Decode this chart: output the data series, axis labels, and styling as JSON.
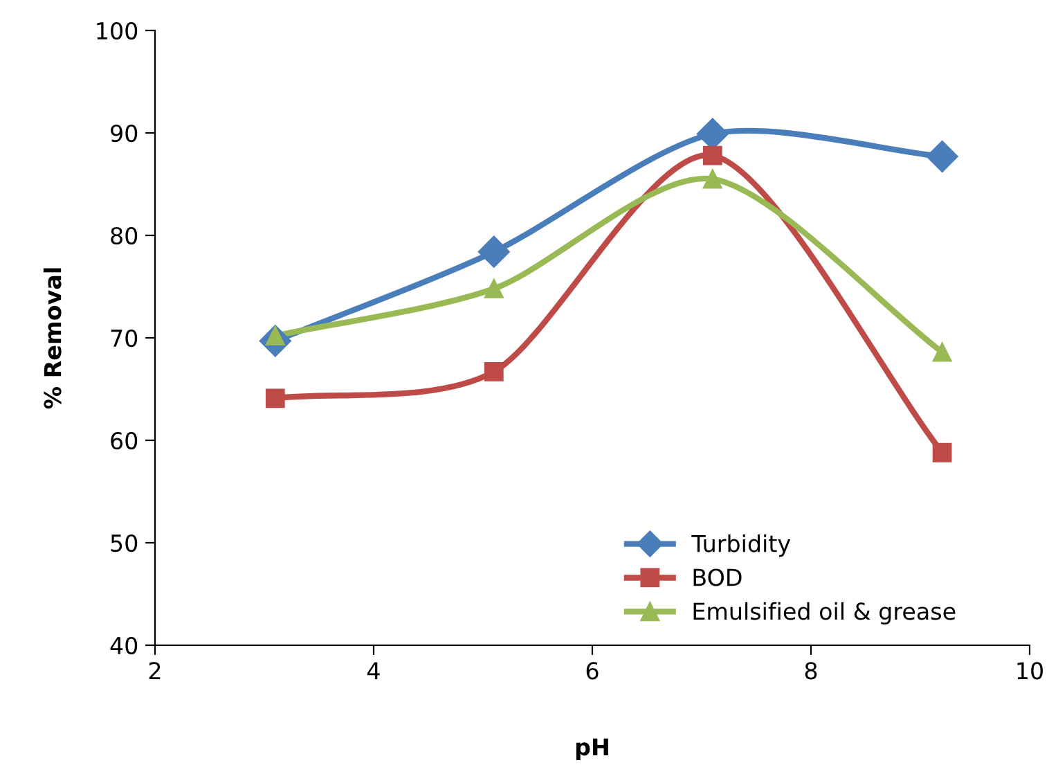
{
  "chart_data": {
    "type": "line",
    "xlabel": "pH",
    "ylabel": "% Removal",
    "xlim": [
      2,
      10
    ],
    "xticks": [
      2,
      4,
      6,
      8,
      10
    ],
    "ylim": [
      40,
      100
    ],
    "yticks": [
      40,
      50,
      60,
      70,
      80,
      90,
      100
    ],
    "grid": false,
    "legend": "bottom right",
    "line_style": "solid",
    "series": [
      {
        "name": "Turbidity",
        "color": "#4a7ebb",
        "marker": "diamond",
        "x": [
          3.1,
          5.1,
          7.1,
          9.2
        ],
        "values": [
          69.7,
          78.4,
          89.9,
          87.7
        ]
      },
      {
        "name": "BOD",
        "color": "#be4b48",
        "marker": "square",
        "x": [
          3.1,
          5.1,
          7.1,
          9.2
        ],
        "values": [
          64.1,
          66.7,
          87.8,
          58.8
        ]
      },
      {
        "name": "Emulsified oil & grease",
        "color": "#98b954",
        "marker": "triangle",
        "x": [
          3.1,
          5.1,
          7.1,
          9.2
        ],
        "values": [
          70.2,
          74.8,
          85.5,
          68.6
        ]
      }
    ]
  }
}
